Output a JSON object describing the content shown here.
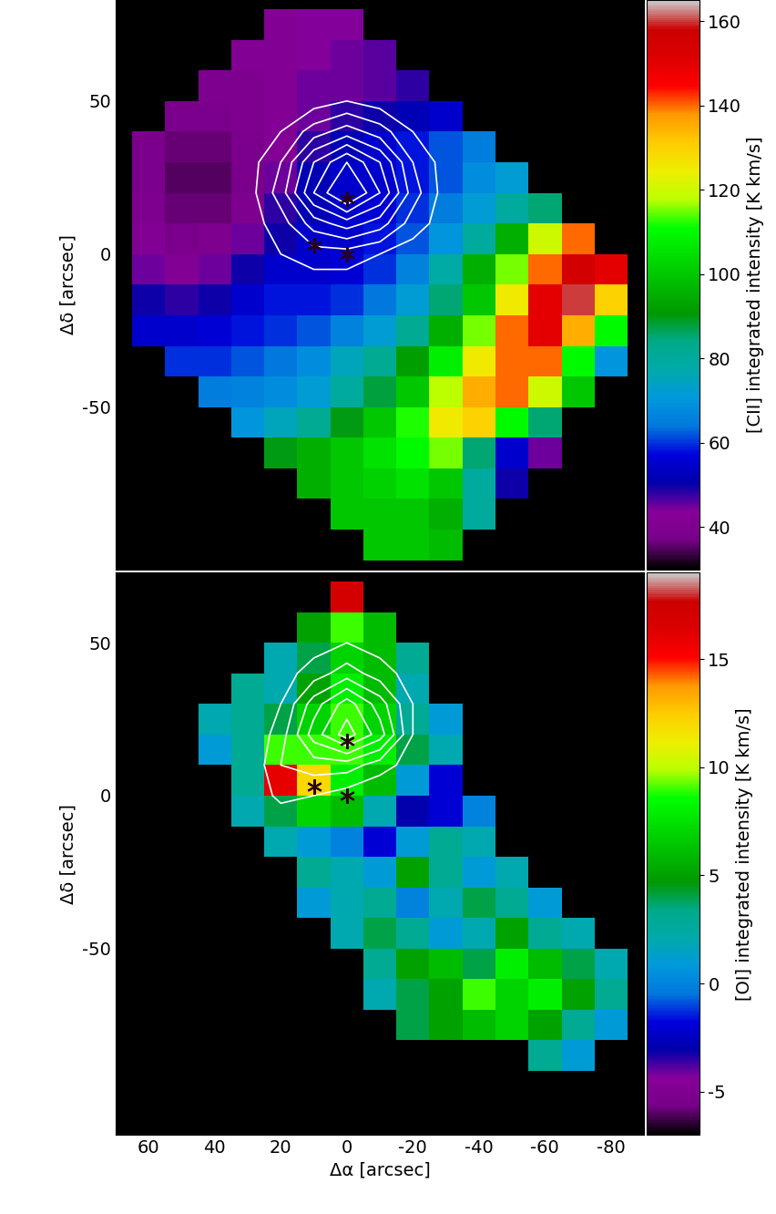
{
  "chart_data": [
    {
      "type": "heatmap",
      "y_label": "Δδ [arcsec]",
      "tick_labels": "y",
      "xlim": [
        70,
        -90
      ],
      "xticks": [
        60,
        40,
        20,
        0,
        -20,
        -40,
        -60,
        -80
      ],
      "ylim": [
        -103,
        83
      ],
      "yticks": [
        -50,
        0,
        50
      ],
      "x": [
        60,
        50,
        40,
        30,
        20,
        10,
        0,
        -10,
        -20,
        -30,
        -40,
        -50,
        -60,
        -70,
        -80
      ],
      "y": [
        75,
        65,
        55,
        45,
        35,
        25,
        15,
        5,
        -5,
        -15,
        -25,
        -35,
        -45,
        -55,
        -65,
        -75,
        -85,
        -95
      ],
      "values": [
        [
          null,
          null,
          null,
          null,
          42,
          44,
          44,
          null,
          null,
          null,
          null,
          null,
          null,
          null,
          null
        ],
        [
          null,
          null,
          null,
          42,
          42,
          44,
          45,
          46,
          null,
          null,
          null,
          null,
          null,
          null,
          null
        ],
        [
          null,
          null,
          40,
          40,
          42,
          45,
          45,
          46,
          48,
          null,
          null,
          null,
          null,
          null,
          null
        ],
        [
          null,
          38,
          38,
          40,
          42,
          45,
          48,
          50,
          52,
          55,
          null,
          null,
          null,
          null,
          null
        ],
        [
          38,
          36,
          36,
          38,
          42,
          48,
          52,
          55,
          58,
          62,
          65,
          null,
          null,
          null,
          null
        ],
        [
          38,
          35,
          35,
          38,
          45,
          52,
          55,
          55,
          58,
          62,
          68,
          72,
          null,
          null,
          null
        ],
        [
          40,
          36,
          36,
          40,
          48,
          52,
          55,
          56,
          60,
          65,
          72,
          80,
          85,
          null,
          null
        ],
        [
          42,
          38,
          40,
          45,
          50,
          55,
          55,
          58,
          62,
          70,
          80,
          95,
          120,
          140,
          null
        ],
        [
          45,
          42,
          45,
          50,
          55,
          55,
          56,
          60,
          66,
          78,
          95,
          115,
          140,
          155,
          150
        ],
        [
          50,
          48,
          50,
          55,
          58,
          58,
          60,
          64,
          72,
          85,
          100,
          125,
          150,
          160,
          130
        ],
        [
          55,
          55,
          56,
          58,
          60,
          62,
          66,
          72,
          82,
          95,
          115,
          140,
          150,
          135,
          110
        ],
        [
          null,
          60,
          60,
          62,
          64,
          68,
          75,
          82,
          92,
          108,
          125,
          140,
          140,
          110,
          70
        ],
        [
          null,
          null,
          65,
          66,
          68,
          72,
          80,
          88,
          100,
          118,
          135,
          140,
          120,
          100,
          null
        ],
        [
          null,
          null,
          null,
          70,
          75,
          82,
          90,
          100,
          112,
          125,
          130,
          110,
          85,
          null,
          null
        ],
        [
          null,
          null,
          null,
          null,
          90,
          95,
          100,
          105,
          110,
          115,
          85,
          55,
          45,
          null,
          null
        ],
        [
          null,
          null,
          null,
          null,
          null,
          95,
          100,
          102,
          105,
          100,
          80,
          50,
          null,
          null,
          null
        ],
        [
          null,
          null,
          null,
          null,
          null,
          null,
          100,
          100,
          100,
          95,
          80,
          null,
          null,
          null,
          null
        ],
        [
          null,
          null,
          null,
          null,
          null,
          null,
          null,
          100,
          100,
          98,
          null,
          null,
          null,
          null,
          null
        ]
      ],
      "colorbar": {
        "label": "[CII] integrated intensity [K km/s]",
        "range": [
          30,
          165
        ],
        "ticks": [
          40,
          60,
          80,
          100,
          120,
          140,
          160
        ]
      },
      "contours": {
        "x": [
          30,
          20,
          10,
          0,
          -10,
          -20,
          -30
        ],
        "y": [
          50,
          40,
          30,
          20,
          10,
          0,
          -10
        ],
        "values": [
          [
            0,
            0.5,
            1,
            1.5,
            1,
            0.5,
            0
          ],
          [
            0.5,
            1.5,
            3,
            4,
            3,
            1.5,
            0.5
          ],
          [
            1,
            2.5,
            5.5,
            7.5,
            5.5,
            2.5,
            1
          ],
          [
            1,
            3,
            6.5,
            9,
            6.5,
            3,
            1
          ],
          [
            1,
            2,
            4,
            5,
            4,
            2,
            1
          ],
          [
            1,
            1.5,
            2,
            2,
            1.5,
            1,
            0.5
          ],
          [
            1,
            1,
            1,
            1,
            0.5,
            0.5,
            0
          ]
        ],
        "levels": [
          1.5,
          2.5,
          3.5,
          4.5,
          5.5,
          6.5,
          7.5
        ],
        "color": "white"
      },
      "stars": {
        "x": [
          0,
          10,
          0
        ],
        "y": [
          18,
          3,
          0
        ],
        "marker": "asterisk",
        "color": "#2a0014"
      }
    },
    {
      "type": "heatmap",
      "x_label": "Δα [arcsec]",
      "y_label": "Δδ [arcsec]",
      "xlim": [
        70,
        -90
      ],
      "xticks": [
        60,
        40,
        20,
        0,
        -20,
        -40,
        -60,
        -80
      ],
      "ylim": [
        -111,
        73
      ],
      "yticks": [
        -50,
        0,
        50
      ],
      "x": [
        60,
        50,
        40,
        30,
        20,
        10,
        0,
        -10,
        -20,
        -30,
        -40,
        -50,
        -60,
        -70,
        -80
      ],
      "y": [
        75,
        65,
        55,
        45,
        35,
        25,
        15,
        5,
        -5,
        -15,
        -25,
        -35,
        -45,
        -55,
        -65,
        -75,
        -85,
        -95
      ],
      "values": [
        [
          null,
          null,
          null,
          null,
          null,
          null,
          null,
          null,
          null,
          null,
          null,
          null,
          null,
          null,
          null
        ],
        [
          null,
          null,
          null,
          null,
          null,
          null,
          17,
          null,
          null,
          null,
          null,
          null,
          null,
          null,
          null
        ],
        [
          null,
          null,
          null,
          null,
          null,
          5,
          9,
          6,
          null,
          null,
          null,
          null,
          null,
          null,
          null
        ],
        [
          null,
          null,
          null,
          null,
          2,
          4,
          7,
          6,
          3,
          null,
          null,
          null,
          null,
          null,
          null
        ],
        [
          null,
          null,
          null,
          3,
          2,
          5,
          8,
          6,
          2,
          null,
          null,
          null,
          null,
          null,
          null
        ],
        [
          null,
          null,
          2,
          3,
          4,
          7,
          9,
          7,
          3,
          1,
          null,
          null,
          null,
          null,
          null
        ],
        [
          null,
          null,
          1,
          3,
          9,
          9,
          9,
          8,
          4,
          2,
          null,
          null,
          null,
          null,
          null
        ],
        [
          null,
          null,
          null,
          3,
          16,
          12,
          8,
          6,
          1,
          -2,
          null,
          null,
          null,
          null,
          null
        ],
        [
          null,
          null,
          null,
          2,
          4,
          7,
          6,
          2,
          -3,
          -2,
          0,
          null,
          null,
          null,
          null
        ],
        [
          null,
          null,
          null,
          null,
          2,
          1,
          0,
          -2,
          1,
          3,
          2,
          null,
          null,
          null,
          null
        ],
        [
          null,
          null,
          null,
          null,
          null,
          3,
          2,
          1,
          5,
          3,
          1,
          2,
          null,
          null,
          null
        ],
        [
          null,
          null,
          null,
          null,
          null,
          1,
          2,
          3,
          0,
          2,
          4,
          3,
          1,
          null,
          null
        ],
        [
          null,
          null,
          null,
          null,
          null,
          null,
          2,
          4,
          3,
          1,
          2,
          5,
          3,
          2,
          null
        ],
        [
          null,
          null,
          null,
          null,
          null,
          null,
          null,
          3,
          5,
          6,
          4,
          8,
          6,
          4,
          2
        ],
        [
          null,
          null,
          null,
          null,
          null,
          null,
          null,
          2,
          4,
          5,
          9,
          7,
          8,
          5,
          3
        ],
        [
          null,
          null,
          null,
          null,
          null,
          null,
          null,
          null,
          4,
          5,
          6,
          7,
          5,
          3,
          1
        ],
        [
          null,
          null,
          null,
          null,
          null,
          null,
          null,
          null,
          null,
          null,
          null,
          null,
          3,
          1,
          null
        ],
        [
          null,
          null,
          null,
          null,
          null,
          null,
          null,
          null,
          null,
          null,
          null,
          null,
          null,
          null,
          null
        ]
      ],
      "colorbar": {
        "label": "[OI] integrated intensity [K km/s]",
        "range": [
          -7,
          19
        ],
        "ticks": [
          -5,
          0,
          5,
          10,
          15
        ]
      },
      "contours": {
        "x": [
          30,
          20,
          10,
          0,
          -10,
          -20,
          -30
        ],
        "y": [
          50,
          40,
          30,
          20,
          10,
          0,
          -10
        ],
        "values": [
          [
            0,
            0.5,
            1,
            1.5,
            1,
            0.5,
            0
          ],
          [
            0.5,
            1,
            2,
            3,
            2,
            1,
            0.5
          ],
          [
            0.5,
            1.5,
            4,
            6,
            4,
            1.5,
            0.5
          ],
          [
            0.5,
            2,
            5,
            7,
            5,
            1.5,
            0.5
          ],
          [
            0.5,
            2.5,
            3,
            3,
            2,
            1,
            0
          ],
          [
            0,
            2,
            1.5,
            1,
            0.5,
            0,
            0
          ],
          [
            0,
            0,
            0,
            0,
            0,
            0,
            0
          ]
        ],
        "levels": [
          1.5,
          2.5,
          3.5,
          4.5,
          5.5,
          6.5
        ],
        "color": "white"
      },
      "stars": {
        "x": [
          0,
          10,
          0
        ],
        "y": [
          18,
          3,
          0
        ],
        "marker": "asterisk",
        "color": "#2a0014"
      }
    }
  ]
}
